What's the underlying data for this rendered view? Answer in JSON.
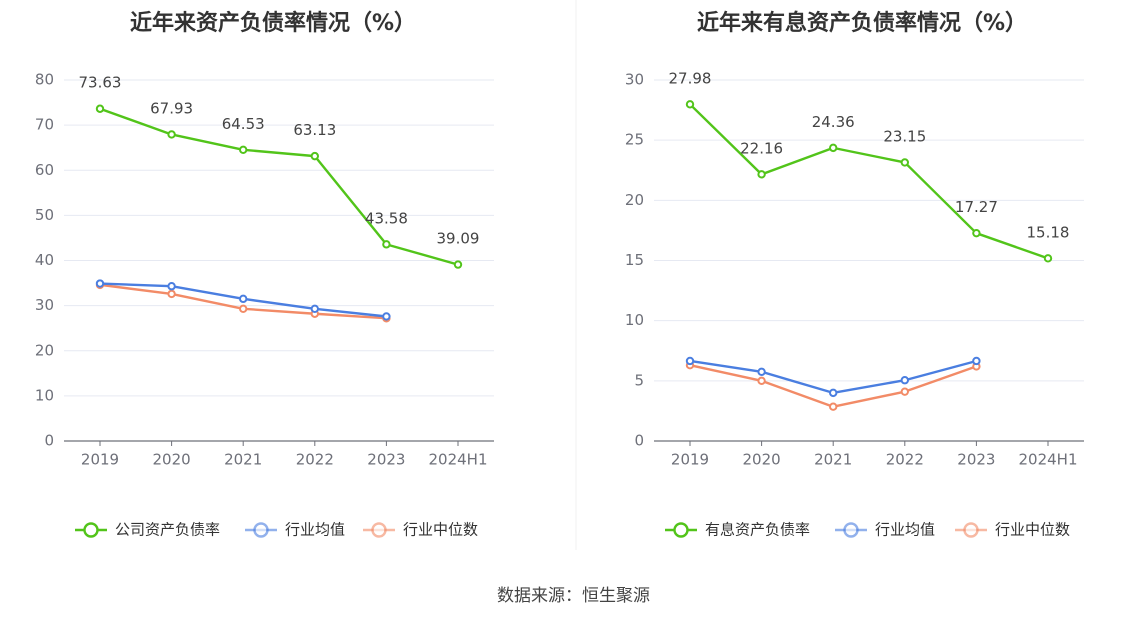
{
  "colors": {
    "company": "#52c41a",
    "industry_avg": "#4a7ee0",
    "industry_median": "#f28b67",
    "grid": "#e6e9f2",
    "axis": "#6e7079"
  },
  "chart_data": [
    {
      "type": "line",
      "title": "近年来资产负债率情况（%）",
      "categories": [
        "2019",
        "2020",
        "2021",
        "2022",
        "2023",
        "2024H1"
      ],
      "ylim": [
        0,
        80
      ],
      "yticks": [
        0,
        10,
        20,
        30,
        40,
        50,
        60,
        70,
        80
      ],
      "grid": true,
      "legend_position": "bottom",
      "series": [
        {
          "name": "公司资产负债率",
          "values": [
            73.63,
            67.93,
            64.53,
            63.13,
            43.58,
            39.09
          ],
          "labels": [
            "73.63",
            "67.93",
            "64.53",
            "63.13",
            "43.58",
            "39.09"
          ]
        },
        {
          "name": "行业均值",
          "values": [
            34.9,
            34.3,
            31.5,
            29.3,
            27.6,
            null
          ]
        },
        {
          "name": "行业中位数",
          "values": [
            34.6,
            32.6,
            29.3,
            28.2,
            27.2,
            null
          ]
        }
      ]
    },
    {
      "type": "line",
      "title": "近年来有息资产负债率情况（%）",
      "categories": [
        "2019",
        "2020",
        "2021",
        "2022",
        "2023",
        "2024H1"
      ],
      "ylim": [
        0,
        30
      ],
      "yticks": [
        0,
        5,
        10,
        15,
        20,
        25,
        30
      ],
      "grid": true,
      "legend_position": "bottom",
      "series": [
        {
          "name": "有息资产负债率",
          "values": [
            27.98,
            22.16,
            24.36,
            23.15,
            17.27,
            15.18
          ],
          "labels": [
            "27.98",
            "22.16",
            "24.36",
            "23.15",
            "17.27",
            "15.18"
          ]
        },
        {
          "name": "行业均值",
          "values": [
            6.65,
            5.75,
            4.0,
            5.05,
            6.65,
            null
          ]
        },
        {
          "name": "行业中位数",
          "values": [
            6.3,
            5.0,
            2.85,
            4.1,
            6.2,
            null
          ]
        }
      ]
    }
  ],
  "footer": "数据来源：恒生聚源"
}
